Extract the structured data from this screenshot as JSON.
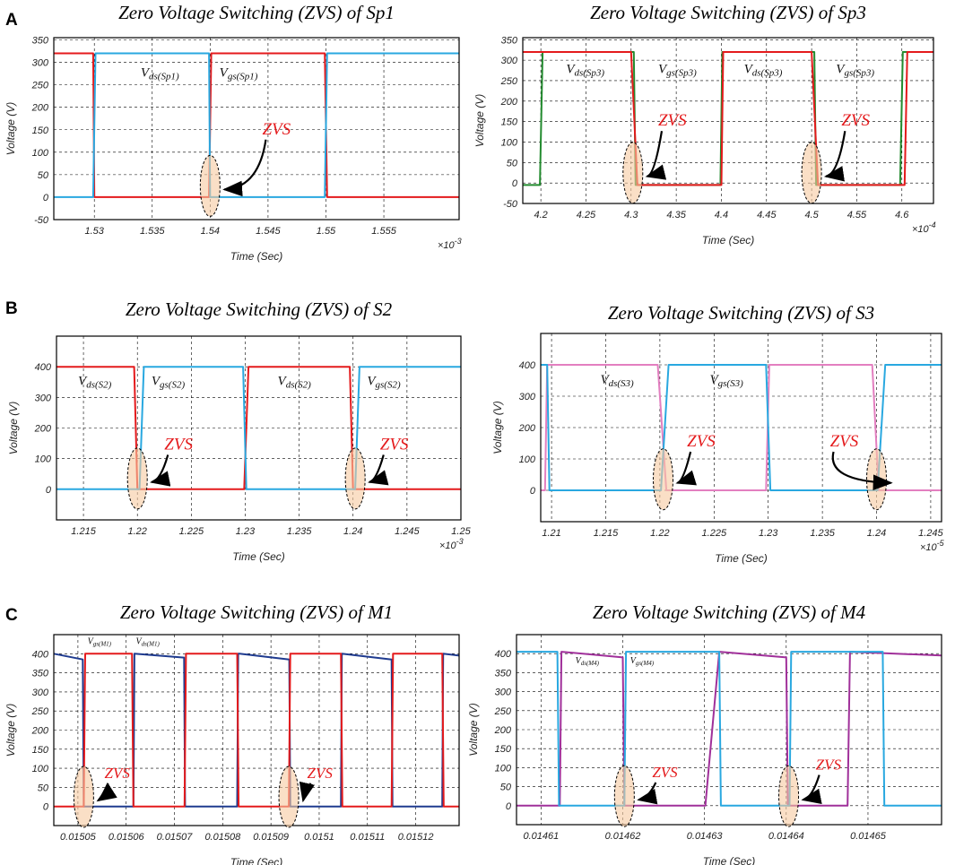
{
  "figure": {
    "panel_labels": [
      "A",
      "B",
      "C"
    ]
  },
  "chart_data": [
    {
      "type": "line",
      "panel": "A",
      "title": "Zero Voltage Switching (ZVS) of Sp1",
      "xlabel": "Time (Sec)",
      "ylabel": "Voltage (V)",
      "x_multiplier": "×10^-3",
      "xlim": [
        1.5265,
        1.5615
      ],
      "ylim": [
        -50,
        355
      ],
      "xticks": [
        1.53,
        1.535,
        1.54,
        1.545,
        1.55,
        1.555
      ],
      "xtick_labels": [
        "1.53",
        "1.535",
        "1.54",
        "1.545",
        "1.55",
        "1.555"
      ],
      "yticks": [
        -50,
        0,
        50,
        100,
        150,
        200,
        250,
        300,
        350
      ],
      "ytick_labels": [
        "-50",
        "0",
        "50",
        "100",
        "150",
        "200",
        "250",
        "300",
        "350"
      ],
      "grid": true,
      "series": [
        {
          "name": "Vds(Sp1)",
          "color": "#e41a1c",
          "x": [
            1.5265,
            1.5299,
            1.53,
            1.5399,
            1.5401,
            1.5499,
            1.5501,
            1.5615
          ],
          "y": [
            320,
            320,
            0,
            0,
            320,
            320,
            0,
            0
          ]
        },
        {
          "name": "Vgs(Sp1)",
          "color": "#29a8e0",
          "x": [
            1.5265,
            1.5299,
            1.5301,
            1.5399,
            1.54,
            1.5499,
            1.5501,
            1.5615
          ],
          "y": [
            0,
            0,
            320,
            320,
            0,
            0,
            320,
            320
          ]
        }
      ],
      "annotations": [
        {
          "text": "ds(Sp1)",
          "prefix": "V",
          "x": 1.534,
          "y": 268
        },
        {
          "text": "gs(Sp1)",
          "prefix": "V",
          "x": 1.5408,
          "y": 268
        }
      ],
      "zvs_label": "ZVS",
      "zvs_regions": [
        {
          "x": 1.54,
          "y": 25,
          "label_x": 1.5445,
          "label_y": 140
        }
      ]
    },
    {
      "type": "line",
      "panel": "A",
      "title": "Zero Voltage Switching (ZVS) of Sp3",
      "xlabel": "Time (Sec)",
      "ylabel": "Voltage (V)",
      "x_multiplier": "×10^-4",
      "xlim": [
        4.18,
        4.635
      ],
      "ylim": [
        -50,
        355
      ],
      "xticks": [
        4.2,
        4.25,
        4.3,
        4.35,
        4.4,
        4.45,
        4.5,
        4.55,
        4.6
      ],
      "xtick_labels": [
        "4.2",
        "4.25",
        "4.3",
        "4.35",
        "4.4",
        "4.45",
        "4.5",
        "4.55",
        "4.6"
      ],
      "yticks": [
        -50,
        0,
        50,
        100,
        150,
        200,
        250,
        300,
        350
      ],
      "ytick_labels": [
        "-50",
        "0",
        "50",
        "100",
        "150",
        "200",
        "250",
        "300",
        "350"
      ],
      "grid": true,
      "series": [
        {
          "name": "Vds(Sp3)",
          "color": "#238b2f",
          "x": [
            4.18,
            4.199,
            4.202,
            4.303,
            4.305,
            4.399,
            4.401,
            4.503,
            4.505,
            4.598,
            4.601,
            4.635
          ],
          "y": [
            -5,
            -5,
            320,
            320,
            -5,
            -5,
            320,
            320,
            -5,
            -5,
            320,
            320
          ]
        },
        {
          "name": "Vgs(Sp3)",
          "color": "#e41a1c",
          "x": [
            4.18,
            4.3,
            4.307,
            4.4,
            4.402,
            4.5,
            4.507,
            4.603,
            4.606,
            4.635
          ],
          "y": [
            320,
            320,
            -5,
            -5,
            320,
            320,
            -5,
            -5,
            320,
            320
          ]
        }
      ],
      "annotations": [
        {
          "text": "ds(Sp3)",
          "prefix": "V",
          "x": 4.228,
          "y": 268
        },
        {
          "text": "gs(Sp3)",
          "prefix": "V",
          "x": 4.33,
          "y": 268
        },
        {
          "text": "ds(Sp3)",
          "prefix": "V",
          "x": 4.425,
          "y": 268
        },
        {
          "text": "gs(Sp3)",
          "prefix": "V",
          "x": 4.527,
          "y": 268
        }
      ],
      "zvs_label": "ZVS",
      "zvs_regions": [
        {
          "x": 4.302,
          "y": 25,
          "label_x": 4.33,
          "label_y": 140
        },
        {
          "x": 4.5,
          "y": 25,
          "label_x": 4.533,
          "label_y": 140
        }
      ]
    },
    {
      "type": "line",
      "panel": "B",
      "title": "Zero Voltage Switching (ZVS) of S2",
      "xlabel": "Time (Sec)",
      "ylabel": "Voltage (V)",
      "x_multiplier": "×10^-3",
      "xlim": [
        1.2125,
        1.25
      ],
      "ylim": [
        -100,
        500
      ],
      "xticks": [
        1.215,
        1.22,
        1.225,
        1.23,
        1.235,
        1.24,
        1.245,
        1.25
      ],
      "xtick_labels": [
        "1.215",
        "1.22",
        "1.225",
        "1.23",
        "1.235",
        "1.24",
        "1.245",
        "1.25"
      ],
      "yticks": [
        0,
        100,
        200,
        300,
        400
      ],
      "ytick_labels": [
        "0",
        "100",
        "200",
        "300",
        "400"
      ],
      "grid": true,
      "series": [
        {
          "name": "Vds(S2)",
          "color": "#e41a1c",
          "x": [
            1.2125,
            1.2197,
            1.22,
            1.2299,
            1.2303,
            1.2397,
            1.24,
            1.25
          ],
          "y": [
            400,
            400,
            0,
            0,
            400,
            400,
            0,
            0
          ]
        },
        {
          "name": "Vgs(S2)",
          "color": "#29a8e0",
          "x": [
            1.2125,
            1.2202,
            1.2206,
            1.2298,
            1.2301,
            1.2402,
            1.2406,
            1.25
          ],
          "y": [
            0,
            0,
            400,
            400,
            0,
            0,
            400,
            400
          ]
        }
      ],
      "annotations": [
        {
          "text": "ds(S2)",
          "prefix": "V",
          "x": 1.2145,
          "y": 340
        },
        {
          "text": "gs(S2)",
          "prefix": "V",
          "x": 1.2213,
          "y": 340
        },
        {
          "text": "ds(S2)",
          "prefix": "V",
          "x": 1.233,
          "y": 340
        },
        {
          "text": "gs(S2)",
          "prefix": "V",
          "x": 1.2413,
          "y": 340
        }
      ],
      "zvs_label": "ZVS",
      "zvs_regions": [
        {
          "x": 1.22,
          "y": 35,
          "label_x": 1.2225,
          "label_y": 130
        },
        {
          "x": 1.2402,
          "y": 35,
          "label_x": 1.2425,
          "label_y": 130
        }
      ]
    },
    {
      "type": "line",
      "panel": "B",
      "title": "Zero Voltage Switching (ZVS) of S3",
      "xlabel": "Time (Sec)",
      "ylabel": "Voltage (V)",
      "x_multiplier": "×10^-5",
      "xlim": [
        1.209,
        1.246
      ],
      "ylim": [
        -100,
        500
      ],
      "xticks": [
        1.21,
        1.215,
        1.22,
        1.225,
        1.23,
        1.235,
        1.24,
        1.245
      ],
      "xtick_labels": [
        "1.21",
        "1.215",
        "1.22",
        "1.225",
        "1.23",
        "1.235",
        "1.24",
        "1.245"
      ],
      "yticks": [
        0,
        100,
        200,
        300,
        400
      ],
      "ytick_labels": [
        "0",
        "100",
        "200",
        "300",
        "400"
      ],
      "grid": true,
      "series": [
        {
          "name": "Vds(S3)",
          "color": "#e37fc0",
          "x": [
            1.209,
            1.2094,
            1.2096,
            1.2198,
            1.2206,
            1.2298,
            1.2301,
            1.2396,
            1.2402,
            1.246
          ],
          "y": [
            0,
            0,
            400,
            400,
            0,
            0,
            400,
            400,
            0,
            0
          ]
        },
        {
          "name": "Vgs(S3)",
          "color": "#29a8e0",
          "x": [
            1.209,
            1.2096,
            1.2098,
            1.2201,
            1.2208,
            1.2298,
            1.2302,
            1.2401,
            1.2408,
            1.246
          ],
          "y": [
            400,
            400,
            0,
            0,
            400,
            400,
            0,
            0,
            400,
            400
          ]
        }
      ],
      "annotations": [
        {
          "text": "ds(S3)",
          "prefix": "V",
          "x": 1.2145,
          "y": 340
        },
        {
          "text": "gs(S3)",
          "prefix": "V",
          "x": 1.2246,
          "y": 340
        }
      ],
      "zvs_label": "ZVS",
      "zvs_regions": [
        {
          "x": 1.2203,
          "y": 35,
          "label_x": 1.2225,
          "label_y": 140
        },
        {
          "x": 1.24,
          "y": 35,
          "label_x": 1.2357,
          "label_y": 140
        }
      ]
    },
    {
      "type": "line",
      "panel": "C",
      "title": "Zero Voltage Switching (ZVS) of M1",
      "xlabel": "Time (Sec)",
      "ylabel": "Voltage (V)",
      "x_multiplier": "",
      "xlim": [
        0.015045,
        0.015129
      ],
      "ylim": [
        -50,
        450
      ],
      "xticks": [
        0.01505,
        0.01506,
        0.01507,
        0.01508,
        0.01509,
        0.0151,
        0.01511,
        0.01512
      ],
      "xtick_labels": [
        "0.01505",
        "0.01506",
        "0.01507",
        "0.01508",
        "0.01509",
        "0.0151",
        "0.01511",
        "0.01512"
      ],
      "yticks": [
        0,
        50,
        100,
        150,
        200,
        250,
        300,
        350,
        400
      ],
      "ytick_labels": [
        "0",
        "50",
        "100",
        "150",
        "200",
        "250",
        "300",
        "350",
        "400"
      ],
      "grid": true,
      "series": [
        {
          "name": "Vds(M1)",
          "color": "#1f3b8f",
          "x": [
            0.015045,
            0.015051,
            0.0150512,
            0.0150615,
            0.0150617,
            0.015072,
            0.0150722,
            0.0150725,
            0.015083,
            0.0150832,
            0.0150835,
            0.0150938,
            0.015094,
            0.0151045,
            0.0151047,
            0.015115,
            0.0151152,
            0.0151255,
            0.0151257,
            0.015129
          ],
          "y": [
            400,
            385,
            0,
            0,
            400,
            390,
            0,
            0,
            0,
            400,
            400,
            385,
            0,
            0,
            400,
            385,
            0,
            0,
            400,
            395
          ]
        },
        {
          "name": "Vgs(M1)",
          "color": "#e41a1c",
          "x": [
            0.015045,
            0.0150512,
            0.0150515,
            0.0150612,
            0.0150615,
            0.0150721,
            0.0150724,
            0.015083,
            0.0150833,
            0.0150937,
            0.015094,
            0.0151045,
            0.0151048,
            0.015115,
            0.0151153,
            0.0151255,
            0.0151258,
            0.015129
          ],
          "y": [
            0,
            0,
            400,
            400,
            0,
            0,
            400,
            400,
            0,
            0,
            400,
            400,
            0,
            0,
            400,
            400,
            0,
            0
          ]
        }
      ],
      "annotations": [
        {
          "text": "gs(M1)",
          "prefix": "V",
          "x": 0.015052,
          "y": 425
        },
        {
          "text": "ds(M1)",
          "prefix": "V",
          "x": 0.015062,
          "y": 425
        }
      ],
      "zvs_label": "ZVS",
      "zvs_regions": [
        {
          "x": 0.0150512,
          "y": 25,
          "label_x": 0.0150555,
          "label_y": 75
        },
        {
          "x": 0.0150937,
          "y": 25,
          "label_x": 0.0150975,
          "label_y": 75
        }
      ]
    },
    {
      "type": "line",
      "panel": "C",
      "title": "Zero Voltage Switching (ZVS) of M4",
      "xlabel": "Time (Sec)",
      "ylabel": "Voltage (V)",
      "x_multiplier": "",
      "xlim": [
        0.014607,
        0.014659
      ],
      "ylim": [
        -50,
        450
      ],
      "xticks": [
        0.01461,
        0.01462,
        0.01463,
        0.01464,
        0.01465
      ],
      "xtick_labels": [
        "0.01461",
        "0.01462",
        "0.01463",
        "0.01464",
        "0.01465"
      ],
      "yticks": [
        0,
        50,
        100,
        150,
        200,
        250,
        300,
        350,
        400
      ],
      "ytick_labels": [
        "0",
        "50",
        "100",
        "150",
        "200",
        "250",
        "300",
        "350",
        "400"
      ],
      "grid": true,
      "series": [
        {
          "name": "Vds(M4)",
          "color": "#a0309a",
          "x": [
            0.014607,
            0.0146123,
            0.0146125,
            0.01462,
            0.0146202,
            0.0146275,
            0.0146277,
            0.0146301,
            0.0146318,
            0.01464,
            0.0146402,
            0.0146475,
            0.0146478,
            0.014659
          ],
          "y": [
            0,
            0,
            405,
            390,
            0,
            0,
            0,
            0,
            405,
            390,
            0,
            0,
            405,
            395
          ]
        },
        {
          "name": "Vgs(M4)",
          "color": "#29a8e0",
          "x": [
            0.014607,
            0.014612,
            0.0146122,
            0.0146202,
            0.0146204,
            0.0146318,
            0.014632,
            0.0146404,
            0.0146406,
            0.0146518,
            0.014652,
            0.014659
          ],
          "y": [
            405,
            405,
            0,
            0,
            405,
            405,
            0,
            0,
            405,
            405,
            0,
            0
          ]
        }
      ],
      "annotations": [
        {
          "text": "ds(M4)",
          "prefix": "V",
          "x": 0.0146142,
          "y": 375
        },
        {
          "text": "gs(M4)",
          "prefix": "V",
          "x": 0.0146209,
          "y": 375
        }
      ],
      "zvs_label": "ZVS",
      "zvs_regions": [
        {
          "x": 0.0146202,
          "y": 25,
          "label_x": 0.0146236,
          "label_y": 75
        },
        {
          "x": 0.0146403,
          "y": 25,
          "label_x": 0.0146436,
          "label_y": 95
        }
      ]
    }
  ]
}
